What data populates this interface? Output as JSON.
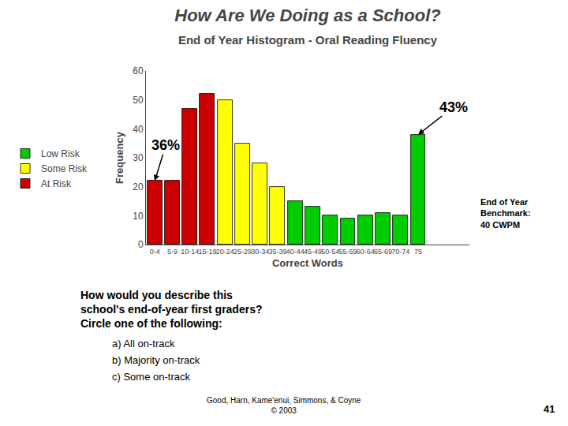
{
  "chart_data": {
    "type": "bar",
    "title": "How Are We Doing as a School?",
    "subtitle": "End of Year Histogram - Oral Reading Fluency",
    "xlabel": "Correct Words",
    "ylabel": "Frequency",
    "categories": [
      "0-4",
      "5-9",
      "10-14",
      "15-19",
      "20-24",
      "25-29",
      "30-34",
      "35-39",
      "40-44",
      "45-49",
      "50-54",
      "55-59",
      "60-64",
      "65-69",
      "70-74",
      "75"
    ],
    "series": [
      {
        "name": "Low Risk",
        "color": "#00cc00",
        "values": [
          null,
          null,
          null,
          null,
          null,
          null,
          null,
          null,
          15,
          13,
          10,
          9,
          10,
          11,
          10,
          38
        ]
      },
      {
        "name": "Some Risk",
        "color": "#ffff00",
        "values": [
          null,
          null,
          null,
          null,
          50,
          35,
          28,
          20,
          null,
          null,
          null,
          null,
          null,
          null,
          null,
          null
        ]
      },
      {
        "name": "At Risk",
        "color": "#cc0000",
        "values": [
          22,
          22,
          47,
          52,
          null,
          null,
          null,
          null,
          null,
          null,
          null,
          null,
          null,
          null,
          null,
          null
        ]
      }
    ],
    "ylim": [
      0,
      60
    ],
    "yticks": [
      0,
      10,
      20,
      30,
      40,
      50,
      60
    ],
    "grid": false,
    "legend": "left",
    "annotations": [
      {
        "text": "36%",
        "category": "0-4"
      },
      {
        "text": "43%",
        "category": "75"
      },
      {
        "text": "End of Year\nBenchmark:\n40 CWPM"
      },
      {
        "text": "How would you describe this\nschool's end-of-year first graders?\nCircle one of the following:"
      },
      {
        "text": "a) All on-track"
      },
      {
        "text": "b) Majority on-track"
      },
      {
        "text": "c) Some on-track"
      },
      {
        "text": "Good, Harn, Kame'enui, Simmons, & Coyne\n© 2003"
      },
      {
        "text": "41"
      }
    ]
  }
}
